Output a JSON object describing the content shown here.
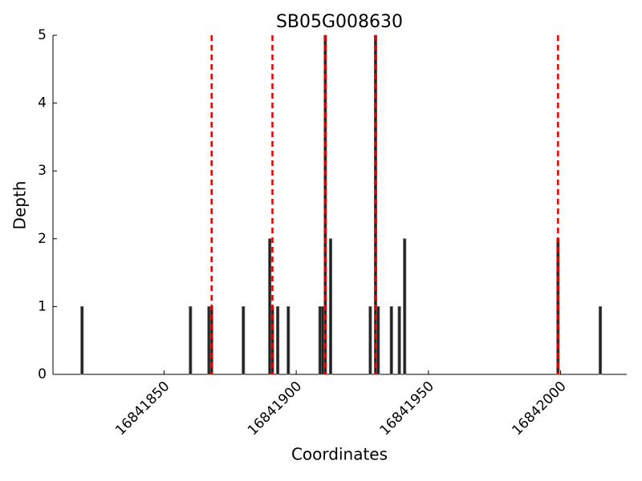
{
  "chart_data": {
    "type": "bar",
    "title": "SB05G008630",
    "x_label": "Coordinates",
    "y_label": "Depth",
    "x": [
      16841819,
      16841860,
      16841867,
      16841868,
      16841880,
      16841890,
      16841891,
      16841893,
      16841897,
      16841909,
      16841910,
      16841911,
      16841913,
      16841928,
      16841930,
      16841931,
      16841936,
      16841939,
      16841941,
      16841999,
      16842015
    ],
    "values": [
      1,
      1,
      1,
      1,
      1,
      2,
      1,
      1,
      1,
      1,
      1,
      5,
      2,
      1,
      5,
      1,
      1,
      1,
      2,
      2,
      1
    ],
    "color": "#222222",
    "vlines": [
      16841868,
      16841891,
      16841911,
      16841930,
      16841999
    ],
    "vline_color": "#e00000",
    "xlim": [
      16841808,
      16842025
    ],
    "ylim": [
      0,
      5
    ],
    "xticks": [
      16841850,
      16841900,
      16841950,
      16842000
    ],
    "yticks": [
      0,
      1,
      2,
      3,
      4,
      5
    ],
    "grid": false
  }
}
